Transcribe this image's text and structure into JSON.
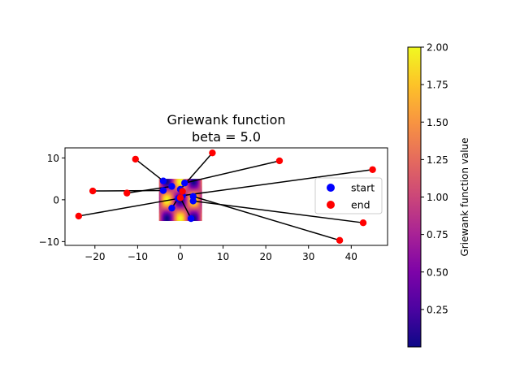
{
  "chart_data": {
    "type": "scatter",
    "title_line1": "Griewank function",
    "title_line2": "beta = 5.0",
    "xlim": [
      -27,
      48.5
    ],
    "ylim": [
      -10.9,
      12.4
    ],
    "xticks": [
      -20,
      -10,
      0,
      10,
      20,
      30,
      40
    ],
    "yticks": [
      -10,
      0,
      10
    ],
    "heatmap": {
      "extent": [
        -5,
        5,
        -5,
        5
      ],
      "vmin": 0.0,
      "vmax": 2.0,
      "colormap": "plasma"
    },
    "colorbar": {
      "label": "Griewank function value",
      "ticks": [
        0.25,
        0.5,
        0.75,
        1.0,
        1.25,
        1.5,
        1.75,
        2.0
      ],
      "tick_labels": [
        "0.25",
        "0.50",
        "0.75",
        "1.00",
        "1.25",
        "1.50",
        "1.75",
        "2.00"
      ],
      "min": 0.0,
      "max": 2.0
    },
    "legend": {
      "placement": "right",
      "entries": [
        {
          "label": "start",
          "color": "#0000ff"
        },
        {
          "label": "end",
          "color": "#ff0000"
        }
      ]
    },
    "series": [
      {
        "name": "start",
        "color": "#0000ff",
        "points": [
          [
            -4.0,
            4.5
          ],
          [
            -4.0,
            2.2
          ],
          [
            -2.0,
            3.2
          ],
          [
            1.0,
            4.0
          ],
          [
            0.0,
            2.5
          ],
          [
            0.5,
            1.0
          ],
          [
            -0.5,
            0.3
          ],
          [
            3.0,
            0.8
          ],
          [
            3.0,
            -0.3
          ],
          [
            -2.0,
            -2.0
          ],
          [
            2.5,
            -4.5
          ]
        ]
      },
      {
        "name": "end",
        "color": "#ff0000",
        "points": [
          [
            -10.5,
            9.7
          ],
          [
            -20.5,
            2.1
          ],
          [
            -12.5,
            1.6
          ],
          [
            7.5,
            11.2
          ],
          [
            23.2,
            9.3
          ],
          [
            45.0,
            7.2
          ],
          [
            -23.8,
            -3.9
          ],
          [
            37.3,
            -9.7
          ],
          [
            0.5,
            2.0
          ],
          [
            42.8,
            -5.5
          ],
          [
            0.0,
            0.5
          ]
        ]
      }
    ],
    "segments": [
      [
        [
          -4.0,
          4.5
        ],
        [
          -10.5,
          9.7
        ]
      ],
      [
        [
          -4.0,
          2.2
        ],
        [
          -20.5,
          2.1
        ]
      ],
      [
        [
          -2.0,
          3.2
        ],
        [
          -12.5,
          1.6
        ]
      ],
      [
        [
          1.0,
          4.0
        ],
        [
          23.2,
          9.3
        ]
      ],
      [
        [
          0.0,
          2.5
        ],
        [
          7.5,
          11.2
        ]
      ],
      [
        [
          0.5,
          1.0
        ],
        [
          45.0,
          7.2
        ]
      ],
      [
        [
          -0.5,
          0.3
        ],
        [
          -23.8,
          -3.9
        ]
      ],
      [
        [
          3.0,
          0.8
        ],
        [
          37.3,
          -9.7
        ]
      ],
      [
        [
          3.0,
          -0.3
        ],
        [
          42.8,
          -5.5
        ]
      ],
      [
        [
          -2.0,
          -2.0
        ],
        [
          0.5,
          2.0
        ]
      ],
      [
        [
          2.5,
          -4.5
        ],
        [
          0.0,
          0.5
        ]
      ]
    ]
  }
}
